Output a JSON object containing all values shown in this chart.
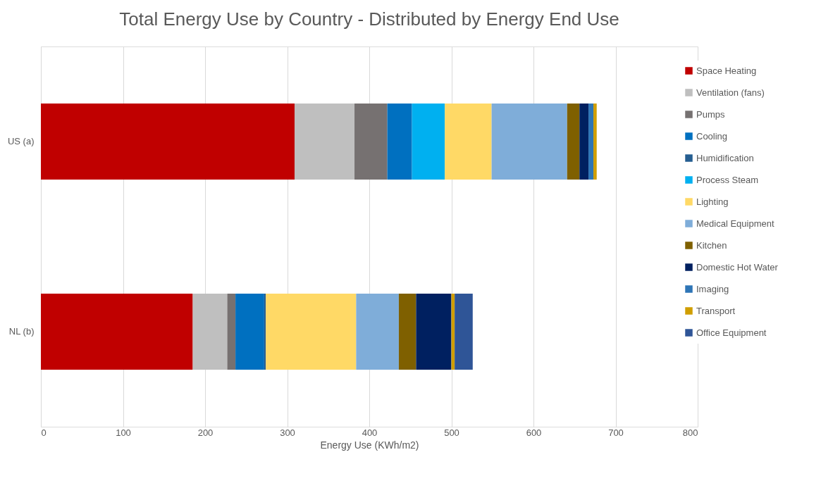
{
  "chart_data": {
    "type": "bar",
    "orientation": "horizontal",
    "stacked": true,
    "title": "Total Energy Use by Country - Distributed by Energy End Use",
    "xlabel": "Energy Use (KWh/m2)",
    "categories": [
      "US (a)",
      "NL (b)"
    ],
    "series": [
      {
        "name": "Space Heating",
        "color": "#c00000",
        "values": [
          309,
          185
        ]
      },
      {
        "name": "Ventilation (fans)",
        "color": "#bfbfbf",
        "values": [
          73,
          42
        ]
      },
      {
        "name": "Pumps",
        "color": "#767171",
        "values": [
          40,
          10
        ]
      },
      {
        "name": "Cooling",
        "color": "#0070c0",
        "values": [
          30,
          35
        ]
      },
      {
        "name": "Humidification",
        "color": "#255e91",
        "values": [
          null,
          2
        ]
      },
      {
        "name": "Process Steam",
        "color": "#00b0f0",
        "values": [
          40,
          null
        ]
      },
      {
        "name": "Lighting",
        "color": "#ffd966",
        "values": [
          57,
          110
        ]
      },
      {
        "name": "Medical Equipment",
        "color": "#7fadd9",
        "values": [
          92,
          52
        ]
      },
      {
        "name": "Kitchen",
        "color": "#7f6000",
        "values": [
          15,
          21
        ]
      },
      {
        "name": "Domestic Hot Water",
        "color": "#002060",
        "values": [
          11,
          43
        ]
      },
      {
        "name": "Imaging",
        "color": "#2e75b6",
        "values": [
          6,
          null
        ]
      },
      {
        "name": "Transport",
        "color": "#d09e00",
        "values": [
          4,
          4
        ]
      },
      {
        "name": "Office Equipment",
        "color": "#2f5597",
        "values": [
          null,
          22
        ]
      }
    ],
    "xlim": [
      0,
      800
    ],
    "xticks": [
      0,
      100,
      200,
      300,
      400,
      500,
      600,
      700,
      800
    ],
    "grid": "x",
    "legend": "right"
  }
}
